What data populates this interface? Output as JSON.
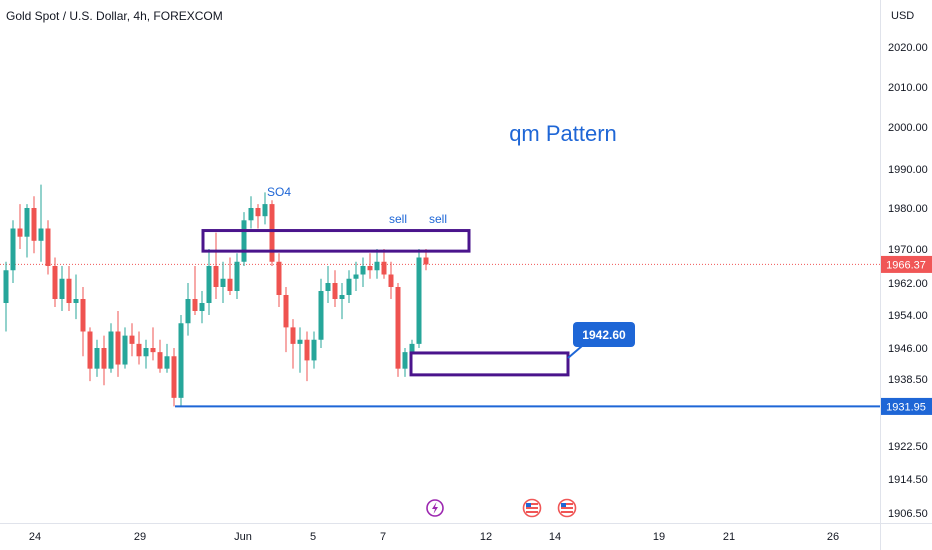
{
  "header": {
    "title": "Gold Spot / U.S. Dollar, 4h, FOREXCOM",
    "currency": "USD"
  },
  "colors": {
    "up": "#26a69a",
    "down": "#ef5350",
    "zone": "#4a148c",
    "blue": "#1e66d6",
    "last_price": "#f05656",
    "grid_axis": "#e0e3eb",
    "axis_text": "#131722",
    "event": "#9c27b0"
  },
  "annotations": {
    "pattern_label": "qm Pattern",
    "peak_label": "SO4",
    "sell_labels": [
      "sell",
      "sell"
    ],
    "target_label": "1942.60"
  },
  "events": [
    {
      "icon": "lightning-icon",
      "date": "Jun 8"
    },
    {
      "icon": "us-flag-icon",
      "date": "Jun 13"
    },
    {
      "icon": "us-flag-icon",
      "date": "Jun 14"
    }
  ],
  "chart_data": {
    "type": "candlestick",
    "symbol": "Gold Spot / U.S. Dollar",
    "interval": "4h",
    "source": "FOREXCOM",
    "x_ticks": [
      "24",
      "29",
      "Jun",
      "5",
      "7",
      "12",
      "14",
      "19",
      "21",
      "26"
    ],
    "y_ticks": [
      "2020.00",
      "2010.00",
      "2000.00",
      "1990.00",
      "1980.00",
      "1970.00",
      "1962.00",
      "1954.00",
      "1946.00",
      "1938.50",
      "1922.50",
      "1914.50",
      "1906.50"
    ],
    "y_tick_values": [
      2020,
      2010,
      2000,
      1990,
      1980,
      1970,
      1962,
      1954,
      1946,
      1938.5,
      1922.5,
      1914.5,
      1906.5
    ],
    "last_price": {
      "label": "1966.37",
      "value": 1966.37
    },
    "support_line": {
      "label": "1931.95",
      "value": 1931.95
    },
    "resistance_zone": {
      "top": 1974.5,
      "bottom": 1969.5
    },
    "target_zone": {
      "top": 1944.8,
      "bottom": 1939.5
    },
    "candles": [
      [
        1957,
        1967,
        1950,
        1965
      ],
      [
        1965,
        1977,
        1962,
        1975
      ],
      [
        1975,
        1981,
        1970,
        1973
      ],
      [
        1973,
        1981,
        1968,
        1980
      ],
      [
        1980,
        1983,
        1969,
        1972
      ],
      [
        1972,
        1986,
        1967,
        1975
      ],
      [
        1975,
        1977,
        1964,
        1966
      ],
      [
        1966,
        1968,
        1956,
        1958
      ],
      [
        1958,
        1966,
        1955,
        1963
      ],
      [
        1963,
        1966,
        1955,
        1957
      ],
      [
        1957,
        1964,
        1953,
        1958
      ],
      [
        1958,
        1961,
        1944,
        1950
      ],
      [
        1950,
        1951,
        1938,
        1941
      ],
      [
        1941,
        1948,
        1939,
        1946
      ],
      [
        1946,
        1949,
        1937,
        1941
      ],
      [
        1941,
        1952,
        1940,
        1950
      ],
      [
        1950,
        1955,
        1939,
        1942
      ],
      [
        1942,
        1951,
        1941,
        1949
      ],
      [
        1949,
        1952,
        1944,
        1947
      ],
      [
        1947,
        1950,
        1942,
        1944
      ],
      [
        1944,
        1948,
        1941,
        1946
      ],
      [
        1946,
        1951,
        1943,
        1945
      ],
      [
        1945,
        1948,
        1940,
        1941
      ],
      [
        1941,
        1947,
        1940,
        1944
      ],
      [
        1944,
        1946,
        1931.95,
        1934
      ],
      [
        1934,
        1954,
        1932,
        1952
      ],
      [
        1952,
        1962,
        1949,
        1958
      ],
      [
        1958,
        1966,
        1954,
        1955
      ],
      [
        1955,
        1960,
        1952,
        1957
      ],
      [
        1957,
        1970,
        1954,
        1966
      ],
      [
        1966,
        1974,
        1958,
        1961
      ],
      [
        1961,
        1967,
        1957,
        1963
      ],
      [
        1963,
        1968,
        1959,
        1960
      ],
      [
        1960,
        1969,
        1958,
        1967
      ],
      [
        1967,
        1979,
        1966,
        1977
      ],
      [
        1977,
        1983,
        1975,
        1980
      ],
      [
        1980,
        1981,
        1975,
        1978
      ],
      [
        1978,
        1984,
        1976,
        1981
      ],
      [
        1981,
        1982,
        1966,
        1967
      ],
      [
        1967,
        1969,
        1956,
        1959
      ],
      [
        1959,
        1961,
        1945,
        1951
      ],
      [
        1951,
        1953,
        1941,
        1947
      ],
      [
        1947,
        1951,
        1940,
        1948
      ],
      [
        1948,
        1950,
        1938,
        1943
      ],
      [
        1943,
        1950,
        1941,
        1948
      ],
      [
        1948,
        1963,
        1946,
        1960
      ],
      [
        1960,
        1966,
        1957,
        1962
      ],
      [
        1962,
        1965,
        1956,
        1958
      ],
      [
        1958,
        1962,
        1953,
        1959
      ],
      [
        1959,
        1965,
        1957,
        1963
      ],
      [
        1963,
        1967,
        1960,
        1964
      ],
      [
        1964,
        1968,
        1961,
        1966
      ],
      [
        1966,
        1969,
        1963,
        1965
      ],
      [
        1965,
        1970,
        1963,
        1967
      ],
      [
        1967,
        1970,
        1963,
        1964
      ],
      [
        1964,
        1967,
        1958,
        1961
      ],
      [
        1961,
        1962,
        1939,
        1941
      ],
      [
        1941,
        1946,
        1939,
        1945
      ],
      [
        1945,
        1948,
        1943,
        1947
      ],
      [
        1947,
        1970,
        1946,
        1968
      ],
      [
        1968,
        1970,
        1965,
        1966.37
      ]
    ]
  }
}
